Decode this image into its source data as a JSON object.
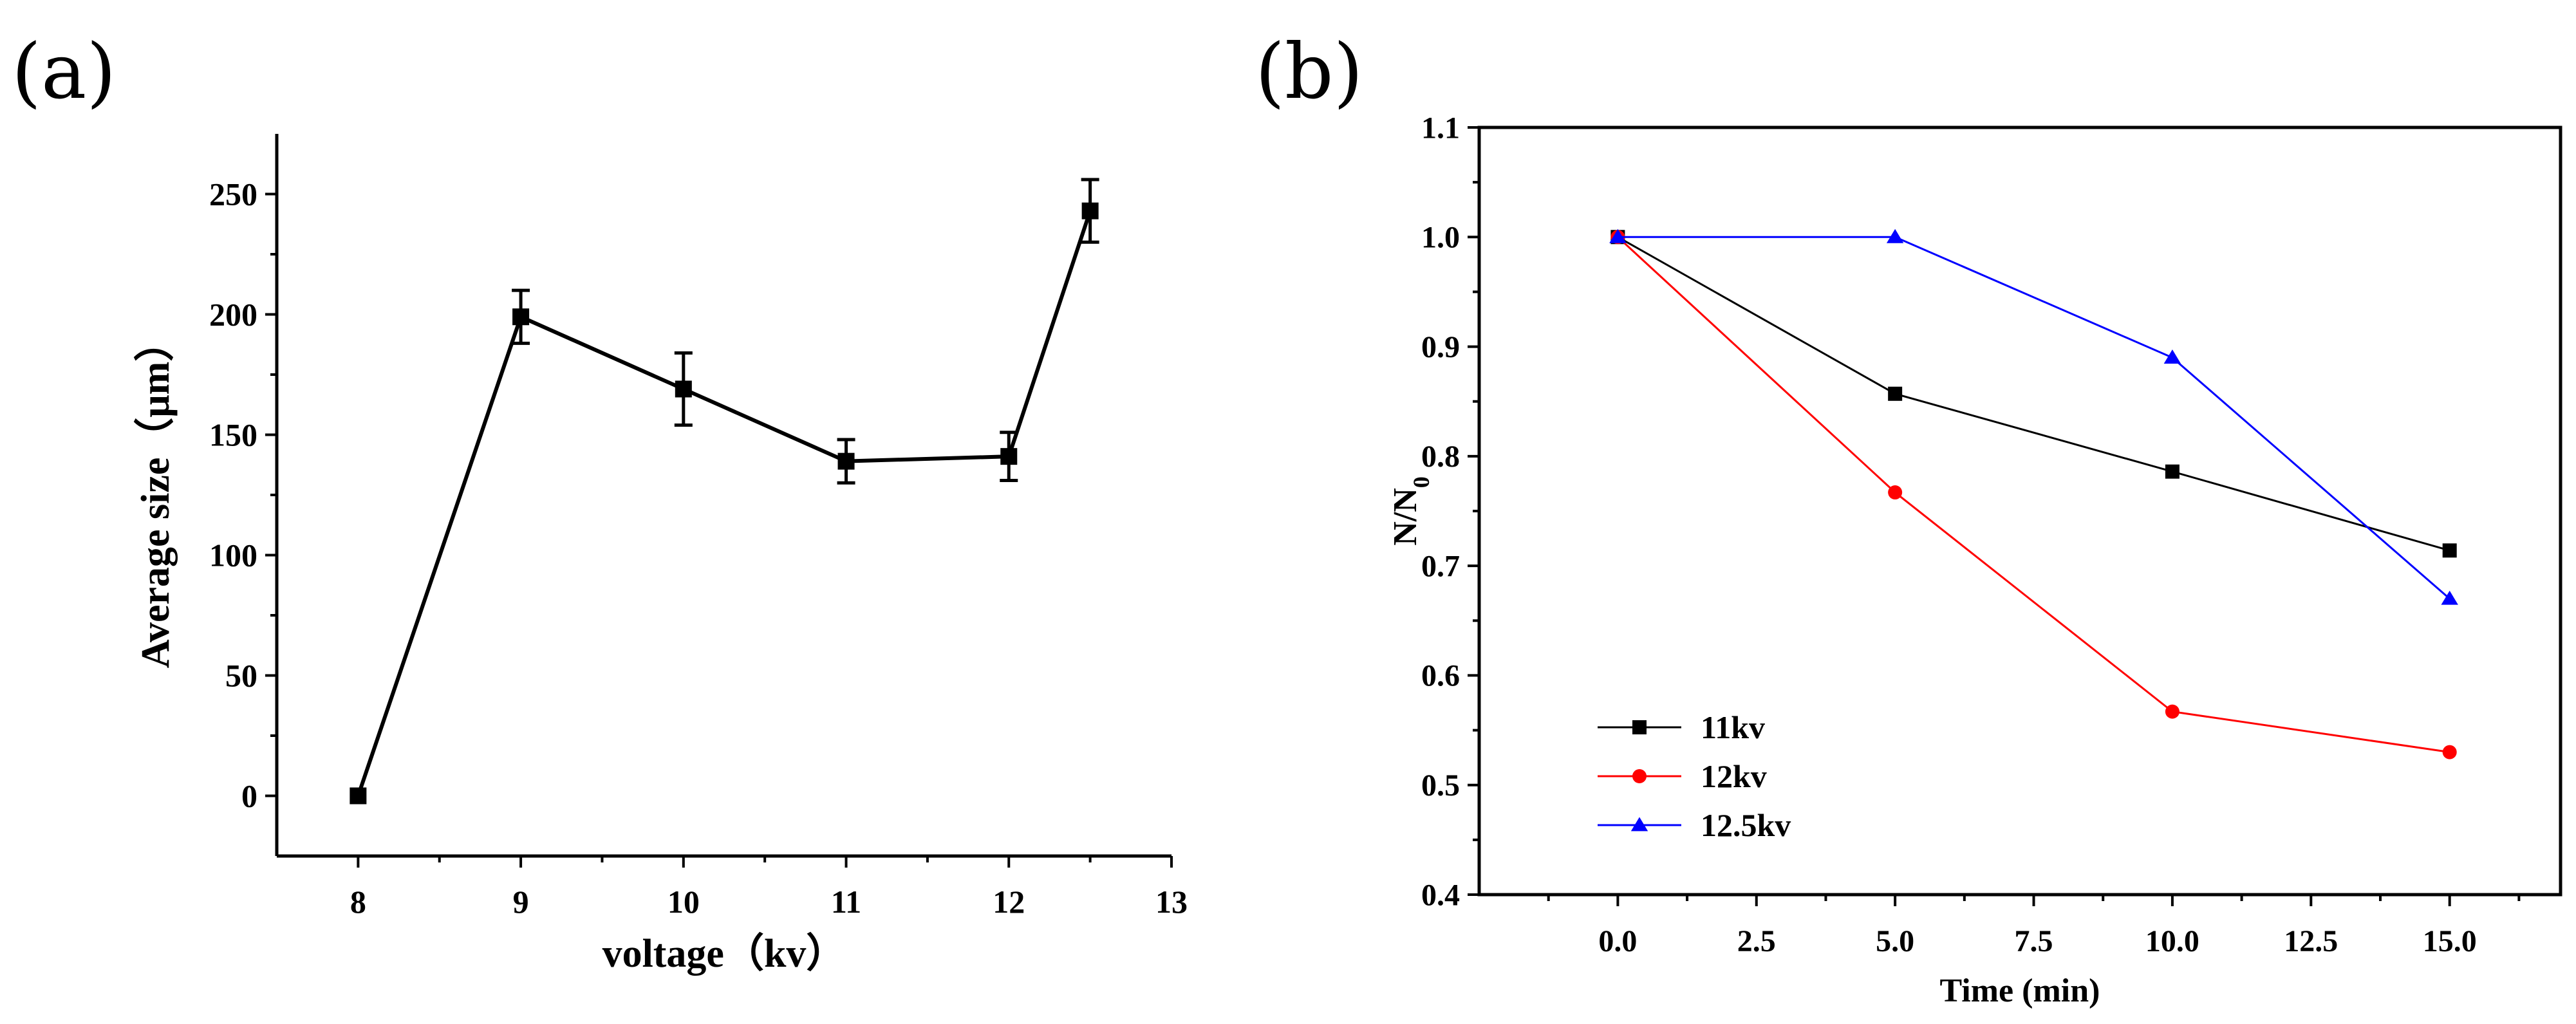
{
  "chart_data": [
    {
      "panel": "(a)",
      "type": "line",
      "title": "",
      "xlabel": "voltage（kv）",
      "ylabel": "Average size（μm）",
      "xlim": [
        7.5,
        13
      ],
      "ylim": [
        -25,
        275
      ],
      "xticks": [
        8,
        9,
        10,
        11,
        12,
        13
      ],
      "yticks": [
        0,
        50,
        100,
        150,
        200,
        250
      ],
      "grid": false,
      "series": [
        {
          "name": "Average size",
          "color": "#000000",
          "marker": "square",
          "x": [
            8,
            9,
            10,
            11,
            12,
            12.5
          ],
          "y": [
            0,
            199,
            169,
            139,
            141,
            243
          ],
          "yerr": [
            0,
            11,
            15,
            9,
            10,
            13
          ]
        }
      ]
    },
    {
      "panel": "(b)",
      "type": "line",
      "title": "",
      "xlabel": "Time (min)",
      "ylabel": "N/N",
      "ylabel_sub": "0",
      "xlim": [
        -2.5,
        17
      ],
      "ylim": [
        0.4,
        1.1
      ],
      "xticks": [
        0.0,
        2.5,
        5.0,
        7.5,
        10.0,
        12.5,
        15.0
      ],
      "xtick_labels": [
        "0.0",
        "2.5",
        "5.0",
        "7.5",
        "10.0",
        "12.5",
        "15.0"
      ],
      "yticks": [
        0.4,
        0.5,
        0.6,
        0.7,
        0.8,
        0.9,
        1.0,
        1.1
      ],
      "ytick_labels": [
        "0.4",
        "0.5",
        "0.6",
        "0.7",
        "0.8",
        "0.9",
        "1.0",
        "1.1"
      ],
      "grid": false,
      "legend": "bottom-left",
      "series": [
        {
          "name": "11kv",
          "color": "#000000",
          "marker": "square",
          "x": [
            0,
            5,
            10,
            15
          ],
          "y": [
            1.0,
            0.857,
            0.786,
            0.714
          ]
        },
        {
          "name": "12kv",
          "color": "#ff0000",
          "marker": "circle",
          "x": [
            0,
            5,
            10,
            15
          ],
          "y": [
            1.0,
            0.767,
            0.567,
            0.53
          ]
        },
        {
          "name": "12.5kv",
          "color": "#0000ff",
          "marker": "triangle",
          "x": [
            0,
            5,
            10,
            15
          ],
          "y": [
            1.0,
            1.0,
            0.89,
            0.67
          ]
        }
      ]
    }
  ]
}
